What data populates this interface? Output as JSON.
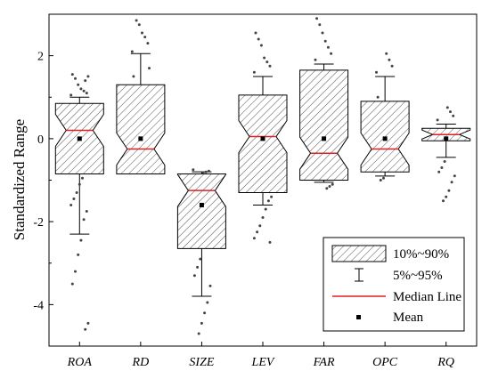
{
  "chart_data": {
    "type": "box",
    "ylabel": "Standardized Range",
    "xlabel": "",
    "ylim": [
      -5,
      3
    ],
    "yticks": [
      -4,
      -2,
      0,
      2
    ],
    "grid": false,
    "legend_position": "bottom-right",
    "box_fill": "diagonal-hatch",
    "median_color": "#e02020",
    "mean_color": "#000000",
    "categories": [
      "ROA",
      "RD",
      "SIZE",
      "LEV",
      "FAR",
      "OPC",
      "RQ"
    ],
    "series": [
      {
        "category": "ROA",
        "q10": -0.85,
        "q90": 0.85,
        "p5": -2.3,
        "p95": 1.0,
        "median": 0.2,
        "mean": 0.0,
        "outliers": [
          1.05,
          1.1,
          1.15,
          1.2,
          1.3,
          1.45,
          1.55,
          1.5,
          1.4,
          -0.95,
          -1.1,
          -1.3,
          -1.45,
          -1.6,
          -1.75,
          -1.95,
          -2.45,
          -2.8,
          -3.2,
          -3.5,
          -4.45,
          -4.6
        ]
      },
      {
        "category": "RD",
        "q10": -0.85,
        "q90": 1.3,
        "p5": -0.85,
        "p95": 2.05,
        "median": -0.25,
        "mean": 0.0,
        "outliers": [
          2.1,
          2.3,
          2.45,
          2.55,
          2.75,
          2.85,
          1.5,
          1.7
        ]
      },
      {
        "category": "SIZE",
        "q10": -2.65,
        "q90": -0.85,
        "p5": -3.8,
        "p95": -0.8,
        "median": -1.25,
        "mean": -1.6,
        "outliers": [
          -0.75,
          -0.78,
          -0.8,
          -0.82,
          -2.9,
          -3.1,
          -3.3,
          -3.55,
          -3.95,
          -4.2,
          -4.45,
          -4.7
        ]
      },
      {
        "category": "LEV",
        "q10": -1.3,
        "q90": 1.05,
        "p5": -1.6,
        "p95": 1.5,
        "median": 0.05,
        "mean": 0.0,
        "outliers": [
          1.6,
          1.75,
          1.85,
          1.95,
          2.25,
          2.4,
          2.55,
          -1.4,
          -1.5,
          -1.7,
          -1.9,
          -2.1,
          -2.25,
          -2.4,
          -2.5
        ]
      },
      {
        "category": "FAR",
        "q10": -1.0,
        "q90": 1.65,
        "p5": -1.05,
        "p95": 1.8,
        "median": -0.35,
        "mean": 0.0,
        "outliers": [
          1.9,
          2.05,
          2.2,
          2.35,
          2.55,
          2.75,
          2.9,
          -1.1,
          -1.15,
          -1.2
        ]
      },
      {
        "category": "OPC",
        "q10": -0.8,
        "q90": 0.9,
        "p5": -0.9,
        "p95": 1.5,
        "median": -0.25,
        "mean": 0.0,
        "outliers": [
          1.6,
          1.75,
          1.9,
          2.05,
          -0.95,
          -1.0,
          1.0
        ]
      },
      {
        "category": "RQ",
        "q10": -0.05,
        "q90": 0.25,
        "p5": -0.45,
        "p95": 0.35,
        "median": 0.1,
        "mean": 0.0,
        "outliers": [
          0.45,
          0.55,
          0.65,
          0.75,
          -0.55,
          -0.7,
          -0.8,
          -0.9,
          -1.05,
          -1.25,
          -1.4,
          -1.5
        ]
      }
    ],
    "legend": [
      {
        "key": "box",
        "label": "10%~90%"
      },
      {
        "key": "whisker",
        "label": "5%~95%"
      },
      {
        "key": "median",
        "label": "Median Line"
      },
      {
        "key": "mean",
        "label": "Mean"
      }
    ]
  }
}
